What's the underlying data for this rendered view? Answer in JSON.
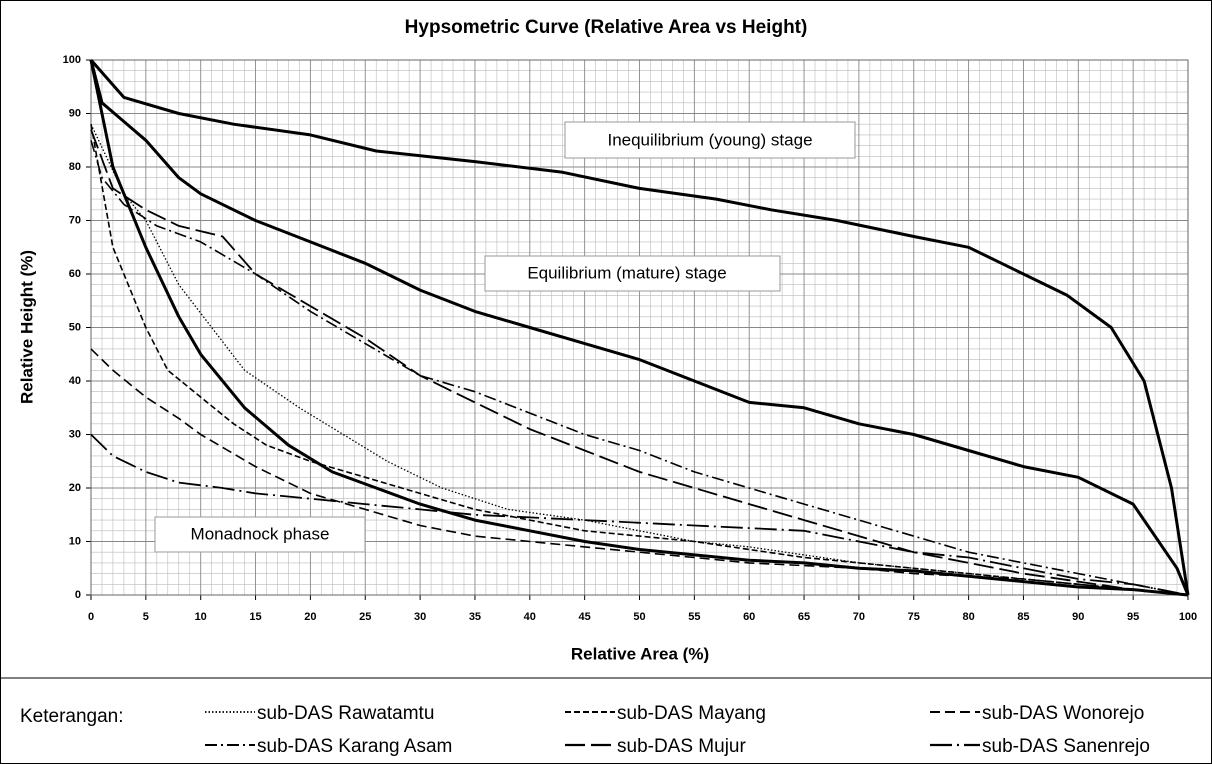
{
  "chart_data": {
    "type": "line",
    "title": "Hypsometric Curve (Relative Area vs Height)",
    "x_label": "Relative Area (%)",
    "y_label": "Relative Height (%)",
    "xlim": [
      0,
      100
    ],
    "ylim": [
      0,
      100
    ],
    "xticks": [
      0,
      5,
      10,
      15,
      20,
      25,
      30,
      35,
      40,
      45,
      50,
      55,
      60,
      65,
      70,
      75,
      80,
      85,
      90,
      95,
      100
    ],
    "yticks": [
      0,
      10,
      20,
      30,
      40,
      50,
      60,
      70,
      80,
      90,
      100
    ],
    "grid": true,
    "annotations": [
      "Inequilibrium (young) stage",
      "Equilibrium (mature) stage",
      "Monadnock phase"
    ],
    "legend_title": "Keterangan:",
    "series": [
      {
        "color": "#000",
        "width": 3,
        "dash": "none",
        "x": [
          0,
          3,
          8,
          13,
          20,
          26,
          35,
          43,
          50,
          57,
          62,
          68,
          75,
          80,
          85,
          89,
          93,
          96,
          98.5,
          100
        ],
        "values": [
          100,
          93,
          90,
          88,
          86,
          83,
          81,
          79,
          76,
          74,
          72,
          70,
          67,
          65,
          60,
          56,
          50,
          40,
          20,
          0
        ]
      },
      {
        "color": "#000",
        "width": 3,
        "dash": "none",
        "x": [
          0,
          1,
          5,
          8,
          10,
          15,
          20,
          25,
          30,
          35,
          40,
          45,
          50,
          55,
          60,
          65,
          70,
          75,
          80,
          85,
          90,
          95,
          99,
          100
        ],
        "values": [
          100,
          92,
          85,
          78,
          75,
          70,
          66,
          62,
          57,
          53,
          50,
          47,
          44,
          40,
          36,
          35,
          32,
          30,
          27,
          24,
          22,
          17,
          5,
          0
        ]
      },
      {
        "color": "#000",
        "width": 3,
        "dash": "none",
        "x": [
          0,
          2,
          5,
          8,
          10,
          14,
          18,
          22,
          26,
          30,
          35,
          40,
          45,
          50,
          55,
          60,
          65,
          70,
          75,
          80,
          85,
          90,
          95,
          100
        ],
        "values": [
          100,
          80,
          65,
          52,
          45,
          35,
          28,
          23,
          20,
          17,
          14,
          12,
          10,
          8.5,
          7.5,
          6.5,
          6,
          5,
          4.5,
          3.5,
          2.5,
          1.5,
          1,
          0
        ]
      },
      {
        "name": "sub-DAS Rawatamtu",
        "color": "#000",
        "width": 1.3,
        "dash": "1.5 2",
        "x": [
          0,
          3,
          5,
          8,
          11,
          14,
          19,
          23,
          27,
          32,
          38,
          45,
          50,
          55,
          60,
          65,
          70,
          75,
          80,
          85,
          90,
          95,
          100
        ],
        "values": [
          88,
          75,
          70,
          58,
          50,
          42,
          35,
          30,
          25,
          20,
          16,
          14,
          12,
          10,
          9,
          7.5,
          6,
          5,
          4,
          3,
          2,
          1,
          0
        ]
      },
      {
        "name": "sub-DAS Mayang",
        "color": "#000",
        "width": 1.6,
        "dash": "6 3",
        "x": [
          0,
          2,
          5,
          7,
          10,
          13,
          16,
          20,
          25,
          30,
          35,
          40,
          45,
          50,
          55,
          60,
          65,
          70,
          75,
          80,
          85,
          90,
          95,
          100
        ],
        "values": [
          88,
          65,
          50,
          42,
          37,
          32,
          28,
          25,
          22,
          19,
          16,
          14,
          12,
          11,
          10,
          8.5,
          7,
          6,
          5,
          4,
          3,
          2,
          1,
          0
        ]
      },
      {
        "name": "sub-DAS Wonorejo",
        "color": "#000",
        "width": 1.6,
        "dash": "10 5",
        "x": [
          0,
          2,
          5,
          8,
          10,
          15,
          20,
          25,
          30,
          35,
          40,
          45,
          50,
          55,
          60,
          65,
          70,
          75,
          80,
          85,
          90,
          95,
          100
        ],
        "values": [
          46,
          42,
          37,
          33,
          30,
          24,
          19,
          16,
          13,
          11,
          10,
          9,
          8,
          7,
          6,
          5.5,
          5,
          4,
          3.5,
          3,
          2,
          1,
          0
        ]
      },
      {
        "name": "sub-DAS Karang Asam",
        "color": "#000",
        "width": 1.6,
        "dash": "12 4 2 4",
        "x": [
          0,
          1,
          3,
          6,
          10,
          15,
          20,
          25,
          30,
          35,
          40,
          45,
          50,
          55,
          60,
          65,
          70,
          75,
          80,
          85,
          90,
          95,
          100
        ],
        "values": [
          85,
          78,
          73,
          69,
          66,
          60,
          53,
          47,
          41,
          38,
          34,
          30,
          27,
          23,
          20,
          17,
          14,
          11,
          8,
          6,
          4,
          2,
          0
        ]
      },
      {
        "name": "sub-DAS Mujur",
        "color": "#000",
        "width": 1.8,
        "dash": "20 6",
        "x": [
          0,
          2,
          5,
          8,
          12,
          15,
          20,
          25,
          30,
          35,
          40,
          45,
          50,
          55,
          60,
          65,
          70,
          75,
          80,
          85,
          90,
          95,
          100
        ],
        "values": [
          87,
          76,
          72,
          69,
          67,
          60,
          54,
          48,
          41,
          36,
          31,
          27,
          23,
          20,
          17,
          14,
          11,
          8,
          6,
          4,
          2.5,
          1,
          0
        ]
      },
      {
        "name": "sub-DAS Sanenrejo",
        "color": "#000",
        "width": 1.8,
        "dash": "22 5 2 5",
        "x": [
          0,
          2,
          5,
          8,
          12,
          15,
          20,
          25,
          30,
          35,
          40,
          45,
          50,
          55,
          60,
          65,
          70,
          75,
          80,
          85,
          90,
          95,
          100
        ],
        "values": [
          30,
          26,
          23,
          21,
          20,
          19,
          18,
          17,
          16,
          15,
          14.5,
          14,
          13.5,
          13,
          12.5,
          12,
          10,
          8,
          7,
          5,
          3,
          2,
          0
        ]
      }
    ]
  }
}
